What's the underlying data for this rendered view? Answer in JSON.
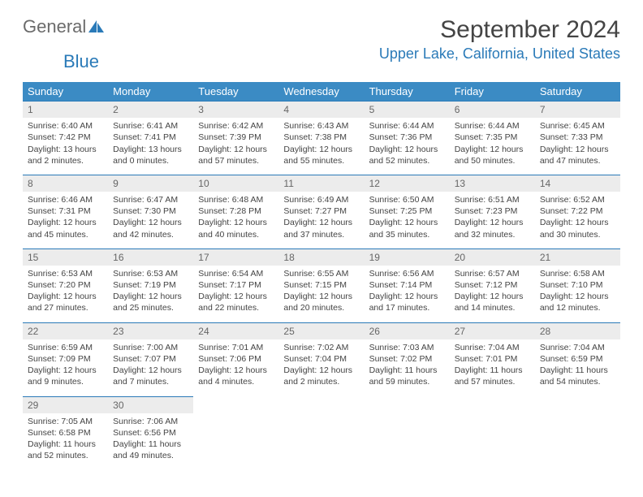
{
  "logo": {
    "text1": "General",
    "text2": "Blue"
  },
  "header": {
    "month_title": "September 2024",
    "location": "Upper Lake, California, United States"
  },
  "colors": {
    "header_bg": "#3b8bc4",
    "header_fg": "#ffffff",
    "accent": "#2a7ab8",
    "daynum_bg": "#ececec",
    "text": "#444444"
  },
  "weekdays": [
    "Sunday",
    "Monday",
    "Tuesday",
    "Wednesday",
    "Thursday",
    "Friday",
    "Saturday"
  ],
  "weeks": [
    [
      {
        "n": "1",
        "sunrise": "Sunrise: 6:40 AM",
        "sunset": "Sunset: 7:42 PM",
        "daylight": "Daylight: 13 hours and 2 minutes."
      },
      {
        "n": "2",
        "sunrise": "Sunrise: 6:41 AM",
        "sunset": "Sunset: 7:41 PM",
        "daylight": "Daylight: 13 hours and 0 minutes."
      },
      {
        "n": "3",
        "sunrise": "Sunrise: 6:42 AM",
        "sunset": "Sunset: 7:39 PM",
        "daylight": "Daylight: 12 hours and 57 minutes."
      },
      {
        "n": "4",
        "sunrise": "Sunrise: 6:43 AM",
        "sunset": "Sunset: 7:38 PM",
        "daylight": "Daylight: 12 hours and 55 minutes."
      },
      {
        "n": "5",
        "sunrise": "Sunrise: 6:44 AM",
        "sunset": "Sunset: 7:36 PM",
        "daylight": "Daylight: 12 hours and 52 minutes."
      },
      {
        "n": "6",
        "sunrise": "Sunrise: 6:44 AM",
        "sunset": "Sunset: 7:35 PM",
        "daylight": "Daylight: 12 hours and 50 minutes."
      },
      {
        "n": "7",
        "sunrise": "Sunrise: 6:45 AM",
        "sunset": "Sunset: 7:33 PM",
        "daylight": "Daylight: 12 hours and 47 minutes."
      }
    ],
    [
      {
        "n": "8",
        "sunrise": "Sunrise: 6:46 AM",
        "sunset": "Sunset: 7:31 PM",
        "daylight": "Daylight: 12 hours and 45 minutes."
      },
      {
        "n": "9",
        "sunrise": "Sunrise: 6:47 AM",
        "sunset": "Sunset: 7:30 PM",
        "daylight": "Daylight: 12 hours and 42 minutes."
      },
      {
        "n": "10",
        "sunrise": "Sunrise: 6:48 AM",
        "sunset": "Sunset: 7:28 PM",
        "daylight": "Daylight: 12 hours and 40 minutes."
      },
      {
        "n": "11",
        "sunrise": "Sunrise: 6:49 AM",
        "sunset": "Sunset: 7:27 PM",
        "daylight": "Daylight: 12 hours and 37 minutes."
      },
      {
        "n": "12",
        "sunrise": "Sunrise: 6:50 AM",
        "sunset": "Sunset: 7:25 PM",
        "daylight": "Daylight: 12 hours and 35 minutes."
      },
      {
        "n": "13",
        "sunrise": "Sunrise: 6:51 AM",
        "sunset": "Sunset: 7:23 PM",
        "daylight": "Daylight: 12 hours and 32 minutes."
      },
      {
        "n": "14",
        "sunrise": "Sunrise: 6:52 AM",
        "sunset": "Sunset: 7:22 PM",
        "daylight": "Daylight: 12 hours and 30 minutes."
      }
    ],
    [
      {
        "n": "15",
        "sunrise": "Sunrise: 6:53 AM",
        "sunset": "Sunset: 7:20 PM",
        "daylight": "Daylight: 12 hours and 27 minutes."
      },
      {
        "n": "16",
        "sunrise": "Sunrise: 6:53 AM",
        "sunset": "Sunset: 7:19 PM",
        "daylight": "Daylight: 12 hours and 25 minutes."
      },
      {
        "n": "17",
        "sunrise": "Sunrise: 6:54 AM",
        "sunset": "Sunset: 7:17 PM",
        "daylight": "Daylight: 12 hours and 22 minutes."
      },
      {
        "n": "18",
        "sunrise": "Sunrise: 6:55 AM",
        "sunset": "Sunset: 7:15 PM",
        "daylight": "Daylight: 12 hours and 20 minutes."
      },
      {
        "n": "19",
        "sunrise": "Sunrise: 6:56 AM",
        "sunset": "Sunset: 7:14 PM",
        "daylight": "Daylight: 12 hours and 17 minutes."
      },
      {
        "n": "20",
        "sunrise": "Sunrise: 6:57 AM",
        "sunset": "Sunset: 7:12 PM",
        "daylight": "Daylight: 12 hours and 14 minutes."
      },
      {
        "n": "21",
        "sunrise": "Sunrise: 6:58 AM",
        "sunset": "Sunset: 7:10 PM",
        "daylight": "Daylight: 12 hours and 12 minutes."
      }
    ],
    [
      {
        "n": "22",
        "sunrise": "Sunrise: 6:59 AM",
        "sunset": "Sunset: 7:09 PM",
        "daylight": "Daylight: 12 hours and 9 minutes."
      },
      {
        "n": "23",
        "sunrise": "Sunrise: 7:00 AM",
        "sunset": "Sunset: 7:07 PM",
        "daylight": "Daylight: 12 hours and 7 minutes."
      },
      {
        "n": "24",
        "sunrise": "Sunrise: 7:01 AM",
        "sunset": "Sunset: 7:06 PM",
        "daylight": "Daylight: 12 hours and 4 minutes."
      },
      {
        "n": "25",
        "sunrise": "Sunrise: 7:02 AM",
        "sunset": "Sunset: 7:04 PM",
        "daylight": "Daylight: 12 hours and 2 minutes."
      },
      {
        "n": "26",
        "sunrise": "Sunrise: 7:03 AM",
        "sunset": "Sunset: 7:02 PM",
        "daylight": "Daylight: 11 hours and 59 minutes."
      },
      {
        "n": "27",
        "sunrise": "Sunrise: 7:04 AM",
        "sunset": "Sunset: 7:01 PM",
        "daylight": "Daylight: 11 hours and 57 minutes."
      },
      {
        "n": "28",
        "sunrise": "Sunrise: 7:04 AM",
        "sunset": "Sunset: 6:59 PM",
        "daylight": "Daylight: 11 hours and 54 minutes."
      }
    ],
    [
      {
        "n": "29",
        "sunrise": "Sunrise: 7:05 AM",
        "sunset": "Sunset: 6:58 PM",
        "daylight": "Daylight: 11 hours and 52 minutes."
      },
      {
        "n": "30",
        "sunrise": "Sunrise: 7:06 AM",
        "sunset": "Sunset: 6:56 PM",
        "daylight": "Daylight: 11 hours and 49 minutes."
      },
      null,
      null,
      null,
      null,
      null
    ]
  ]
}
